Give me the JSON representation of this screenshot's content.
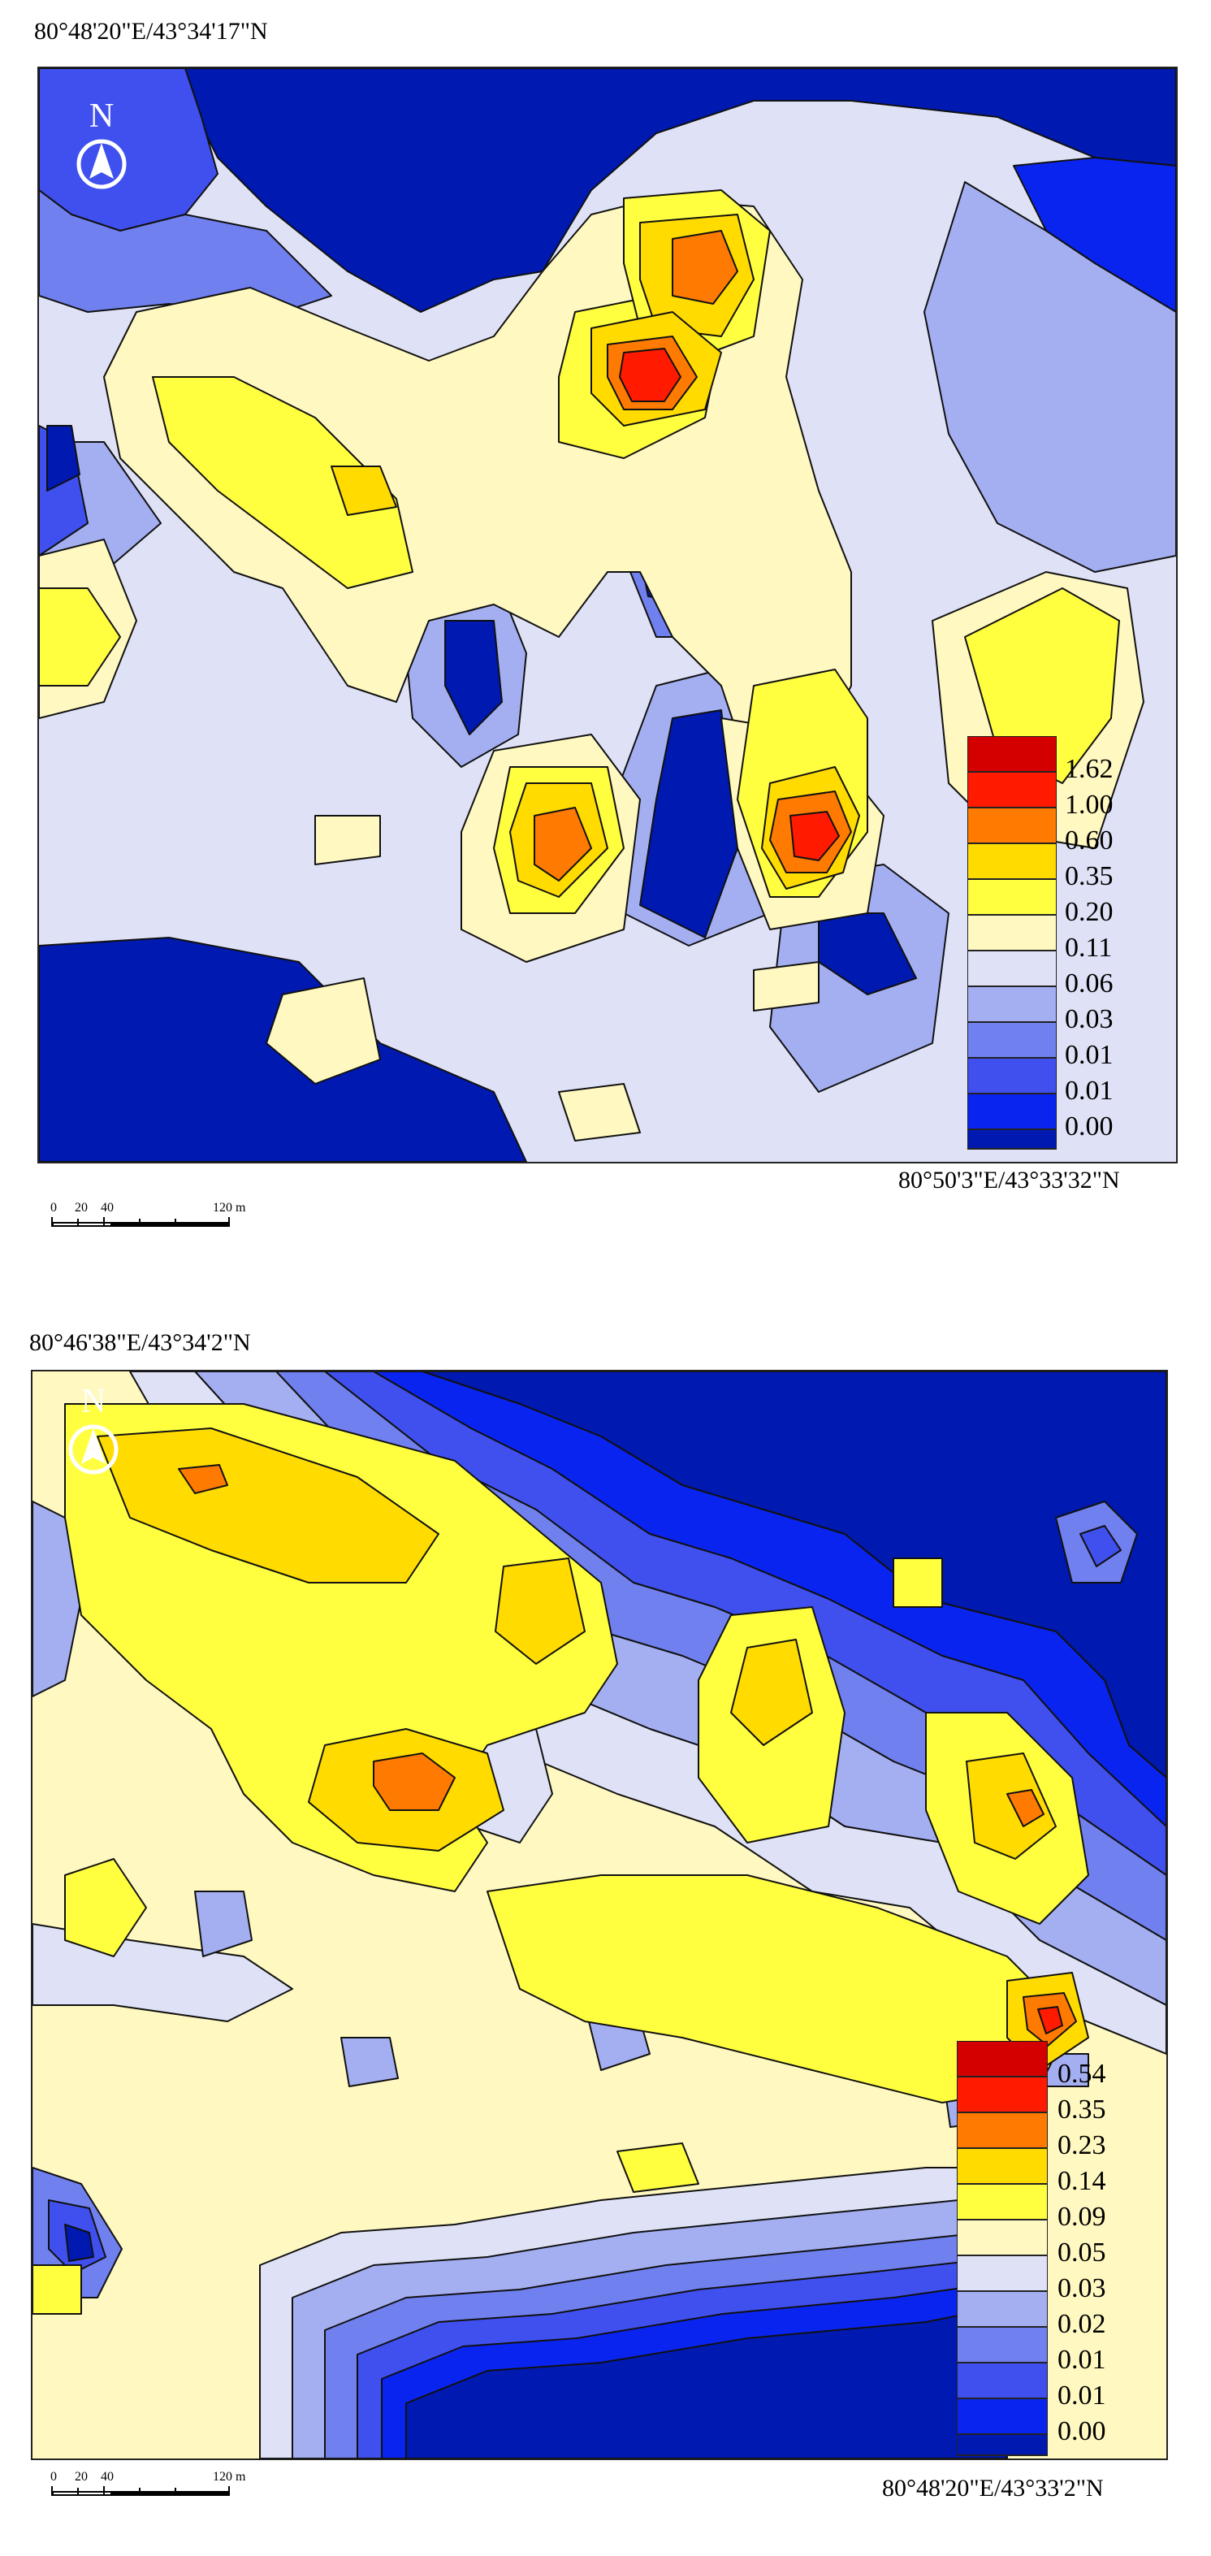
{
  "map1": {
    "top_left_coord": "80°48'20\"E/43°34'17\"N",
    "bottom_right_coord": "80°50'3\"E/43°33'32\"N",
    "north_label": "N",
    "legend_values": [
      "1.62",
      "1.00",
      "0.60",
      "0.35",
      "0.20",
      "0.11",
      "0.06",
      "0.03",
      "0.01",
      "0.01",
      "0.00"
    ],
    "scale_labels": [
      "0",
      "20",
      "40",
      "120 m"
    ]
  },
  "map2": {
    "top_left_coord": "80°46'38\"E/43°34'2\"N",
    "bottom_right_coord": "80°48'20\"E/43°33'2\"N",
    "north_label": "N",
    "legend_values": [
      "0.54",
      "0.35",
      "0.23",
      "0.14",
      "0.09",
      "0.05",
      "0.03",
      "0.02",
      "0.01",
      "0.01",
      "0.00"
    ],
    "scale_labels": [
      "0",
      "20",
      "40",
      "120 m"
    ]
  },
  "colors": {
    "c0": "#0019b0",
    "c1": "#0a24f0",
    "c2": "#3f50ef",
    "c3": "#7080ee",
    "c4": "#a4aff2",
    "c5": "#dfe2f6",
    "c6": "#fff8c0",
    "c7": "#ffff40",
    "c8": "#ffdb00",
    "c9": "#ff7a00",
    "c10": "#ff1a00",
    "c11": "#d40000"
  }
}
